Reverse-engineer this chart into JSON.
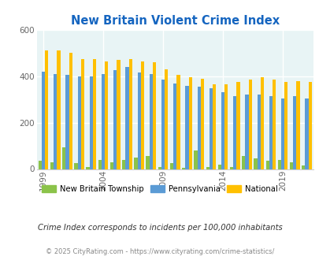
{
  "title": "New Britain Violent Crime Index",
  "years": [
    1999,
    2000,
    2001,
    2002,
    2003,
    2004,
    2005,
    2006,
    2007,
    2008,
    2009,
    2010,
    2011,
    2012,
    2013,
    2014,
    2015,
    2016,
    2017,
    2018,
    2019,
    2020,
    2021
  ],
  "new_britain": [
    35,
    30,
    95,
    25,
    10,
    40,
    30,
    40,
    50,
    55,
    10,
    25,
    5,
    80,
    10,
    20,
    10,
    55,
    45,
    35,
    40,
    30,
    15
  ],
  "pennsylvania": [
    420,
    410,
    405,
    400,
    400,
    410,
    425,
    440,
    415,
    410,
    385,
    370,
    360,
    355,
    350,
    330,
    315,
    320,
    320,
    315,
    305,
    315,
    305
  ],
  "national": [
    510,
    510,
    500,
    475,
    475,
    465,
    470,
    475,
    465,
    460,
    430,
    405,
    395,
    390,
    365,
    365,
    375,
    385,
    395,
    385,
    375,
    380,
    375
  ],
  "ylim": [
    0,
    600
  ],
  "yticks": [
    0,
    200,
    400,
    600
  ],
  "xlabel_years": [
    1999,
    2004,
    2009,
    2014,
    2019
  ],
  "color_nbt": "#8BC34A",
  "color_pa": "#5B9BD5",
  "color_nat": "#FFC000",
  "bg_color": "#E8F4F5",
  "title_color": "#1565C0",
  "grid_color": "#ffffff",
  "footnote_color": "#333333",
  "copyright_color": "#888888",
  "legend_nbt": "New Britain Township",
  "legend_pa": "Pennsylvania",
  "legend_nat": "National",
  "footnote": "Crime Index corresponds to incidents per 100,000 inhabitants",
  "copyright": "© 2025 CityRating.com - https://www.cityrating.com/crime-statistics/",
  "bar_width": 0.28
}
